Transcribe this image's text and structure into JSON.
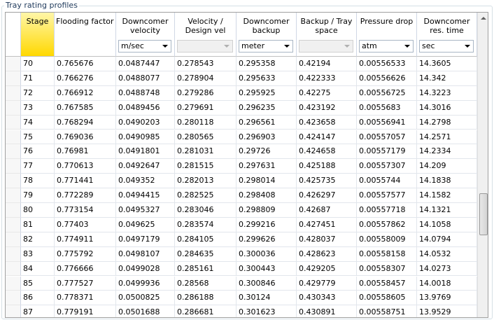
{
  "group_title": "Tray rating profiles",
  "table": {
    "columns": [
      {
        "label": "Stage"
      },
      {
        "label": "Flooding factor"
      },
      {
        "label": "Downcomer velocity",
        "unit": "m/sec"
      },
      {
        "label": "Velocity / Design vel"
      },
      {
        "label": "Downcomer backup",
        "unit": "meter"
      },
      {
        "label": "Backup / Tray space"
      },
      {
        "label": "Pressure drop",
        "unit": "atm"
      },
      {
        "label": "Downcomer res. time",
        "unit": "sec"
      }
    ],
    "rows": [
      [
        "70",
        "0.765676",
        "0.0487447",
        "0.278543",
        "0.295358",
        "0.42194",
        "0.00556533",
        "14.3605"
      ],
      [
        "71",
        "0.766276",
        "0.0488077",
        "0.278904",
        "0.295633",
        "0.422333",
        "0.00556626",
        "14.342"
      ],
      [
        "72",
        "0.766912",
        "0.0488748",
        "0.279286",
        "0.295925",
        "0.42275",
        "0.00556725",
        "14.3223"
      ],
      [
        "73",
        "0.767585",
        "0.0489456",
        "0.279691",
        "0.296235",
        "0.423192",
        "0.0055683",
        "14.3016"
      ],
      [
        "74",
        "0.768294",
        "0.0490203",
        "0.280118",
        "0.296561",
        "0.423658",
        "0.00556941",
        "14.2798"
      ],
      [
        "75",
        "0.769036",
        "0.0490985",
        "0.280565",
        "0.296903",
        "0.424147",
        "0.00557057",
        "14.2571"
      ],
      [
        "76",
        "0.76981",
        "0.0491801",
        "0.281031",
        "0.29726",
        "0.424658",
        "0.00557179",
        "14.2334"
      ],
      [
        "77",
        "0.770613",
        "0.0492647",
        "0.281515",
        "0.297631",
        "0.425188",
        "0.00557307",
        "14.209"
      ],
      [
        "78",
        "0.771441",
        "0.049352",
        "0.282013",
        "0.298014",
        "0.425735",
        "0.0055744",
        "14.1838"
      ],
      [
        "79",
        "0.772289",
        "0.0494415",
        "0.282525",
        "0.298408",
        "0.426297",
        "0.00557577",
        "14.1582"
      ],
      [
        "80",
        "0.773154",
        "0.0495327",
        "0.283046",
        "0.298809",
        "0.42687",
        "0.00557718",
        "14.1321"
      ],
      [
        "81",
        "0.77403",
        "0.049625",
        "0.283574",
        "0.299216",
        "0.427451",
        "0.00557862",
        "14.1058"
      ],
      [
        "82",
        "0.774911",
        "0.0497179",
        "0.284105",
        "0.299626",
        "0.428037",
        "0.00558009",
        "14.0794"
      ],
      [
        "83",
        "0.775792",
        "0.0498107",
        "0.284635",
        "0.300036",
        "0.428623",
        "0.00558158",
        "14.0532"
      ],
      [
        "84",
        "0.776666",
        "0.0499028",
        "0.285161",
        "0.300443",
        "0.429205",
        "0.00558307",
        "14.0273"
      ],
      [
        "85",
        "0.777527",
        "0.0499936",
        "0.28568",
        "0.300846",
        "0.429779",
        "0.00558457",
        "14.0018"
      ],
      [
        "86",
        "0.778371",
        "0.0500825",
        "0.286188",
        "0.30124",
        "0.430343",
        "0.00558605",
        "13.9769"
      ],
      [
        "87",
        "0.779191",
        "0.0501688",
        "0.286681",
        "0.301623",
        "0.430891",
        "0.00558751",
        "13.9529"
      ]
    ]
  }
}
